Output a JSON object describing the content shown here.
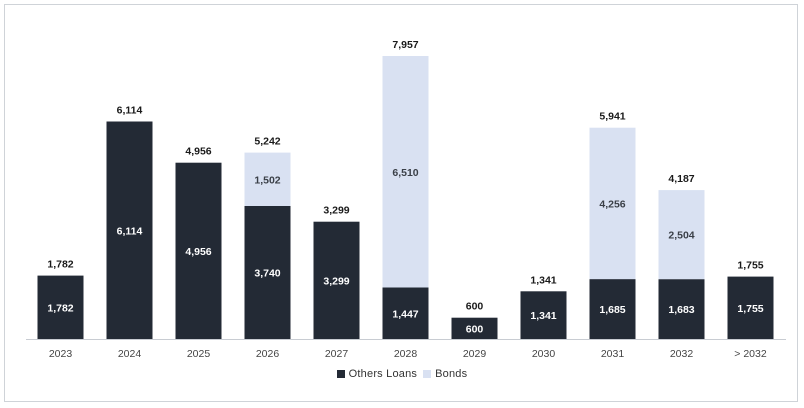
{
  "chart_data": {
    "type": "bar",
    "stacked": true,
    "title": "",
    "xlabel": "",
    "ylabel": "",
    "ylim": [
      0,
      8400
    ],
    "grid": false,
    "legend_position": "bottom",
    "categories": [
      "2023",
      "2024",
      "2025",
      "2026",
      "2027",
      "2028",
      "2029",
      "2030",
      "2031",
      "2032",
      "> 2032"
    ],
    "series": [
      {
        "name": "Others Loans",
        "color": "#232a35",
        "values": [
          1782,
          6114,
          4956,
          3740,
          3299,
          1447,
          600,
          1341,
          1685,
          1683,
          1755
        ]
      },
      {
        "name": "Bonds",
        "color": "#d9e1f2",
        "values": [
          0,
          0,
          0,
          1502,
          0,
          6510,
          0,
          0,
          4256,
          2504,
          0
        ]
      }
    ],
    "segment_labels": [
      [
        "1,782",
        "6,114",
        "4,956",
        "3,740",
        "3,299",
        "1,447",
        "600",
        "1,341",
        "1,685",
        "1,683",
        "1,755"
      ],
      [
        "",
        "",
        "",
        "1,502",
        "",
        "6,510",
        "",
        "",
        "4,256",
        "2,504",
        ""
      ]
    ],
    "total_labels": [
      "1,782",
      "6,114",
      "4,956",
      "5,242",
      "3,299",
      "7,957",
      "600",
      "1,341",
      "5,941",
      "4,187",
      "1,755"
    ]
  },
  "legend": {
    "items": [
      {
        "label": "Others Loans",
        "color": "#232a35"
      },
      {
        "label": "Bonds",
        "color": "#d9e1f2"
      }
    ]
  }
}
